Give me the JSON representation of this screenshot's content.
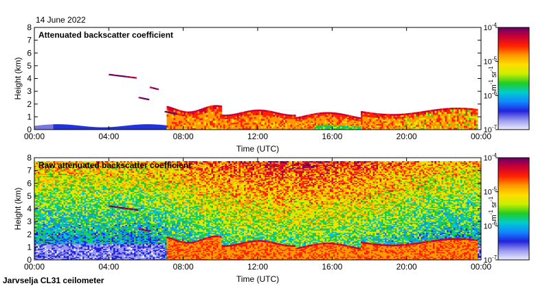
{
  "page": {
    "date_label": "14 June 2022",
    "instrument_label": "Jarvselja CL31 ceilometer"
  },
  "chart_data": [
    {
      "type": "heatmap",
      "title": "Attenuated backscatter coefficient",
      "xlabel": "Time (UTC)",
      "ylabel": "Height (km)",
      "xlim": [
        0,
        24
      ],
      "ylim": [
        0,
        8
      ],
      "x_ticks": [
        "00:00",
        "04:00",
        "08:00",
        "12:00",
        "16:00",
        "20:00",
        "00:00"
      ],
      "y_ticks": [
        "0",
        "1",
        "2",
        "3",
        "4",
        "5",
        "6",
        "7",
        "8"
      ],
      "grid": false,
      "colorbar": {
        "label_base": "m",
        "label_exp1": "-1",
        "label_mid": " sr",
        "label_exp2": "-1",
        "scale": "log",
        "range": [
          1e-07,
          0.0001
        ],
        "ticks": [
          {
            "base": "10",
            "exp": "-4"
          },
          {
            "base": "10",
            "exp": "-5"
          },
          {
            "base": "10",
            "exp": "-6"
          },
          {
            "base": "10",
            "exp": "-7"
          }
        ],
        "colors": [
          "#eeeeff",
          "#9999ee",
          "#2222dd",
          "#1188ff",
          "#00cccc",
          "#22cc22",
          "#ccee00",
          "#ffdd00",
          "#ff9900",
          "#ff2200",
          "#cc0033",
          "#660066"
        ]
      }
    },
    {
      "type": "heatmap",
      "title": "Raw attenuated backscatter coefficient",
      "xlabel": "Time (UTC)",
      "ylabel": "Height (km)",
      "xlim": [
        0,
        24
      ],
      "ylim": [
        0,
        8
      ],
      "x_ticks": [
        "00:00",
        "04:00",
        "08:00",
        "12:00",
        "16:00",
        "20:00",
        "00:00"
      ],
      "y_ticks": [
        "0",
        "1",
        "2",
        "3",
        "4",
        "5",
        "6",
        "7",
        "8"
      ],
      "grid": false,
      "colorbar": {
        "label_base": "m",
        "label_exp1": "-1",
        "label_mid": " sr",
        "label_exp2": "-1",
        "scale": "log",
        "range": [
          1e-07,
          0.0001
        ],
        "ticks": [
          {
            "base": "10",
            "exp": "-4"
          },
          {
            "base": "10",
            "exp": "-5"
          },
          {
            "base": "10",
            "exp": "-6"
          },
          {
            "base": "10",
            "exp": "-7"
          }
        ],
        "colors": [
          "#eeeeff",
          "#9999ee",
          "#2222dd",
          "#1188ff",
          "#00cccc",
          "#22cc22",
          "#ccee00",
          "#ffdd00",
          "#ff9900",
          "#ff2200",
          "#cc0033",
          "#660066"
        ]
      }
    }
  ]
}
